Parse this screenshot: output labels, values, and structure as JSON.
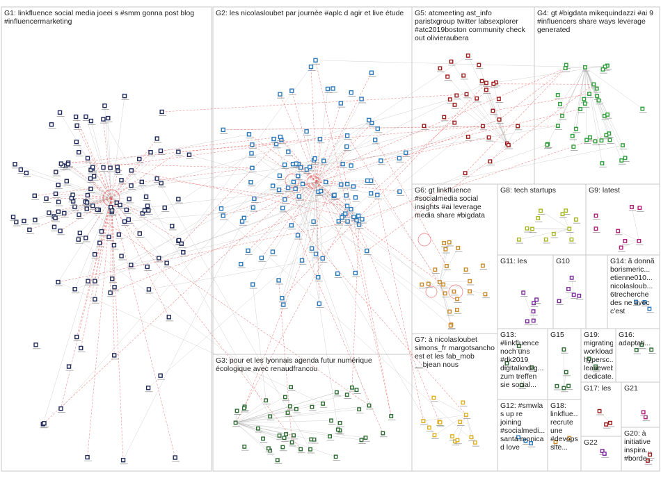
{
  "groups": [
    {
      "id": "G1",
      "label": "G1: linkfluence social media joeei s #smm gonna post blog #influencermarketing",
      "color": "#1f2a5a"
    },
    {
      "id": "G2",
      "label": "G2: les nicolasloubet par journée #aplc d agir et live étude",
      "color": "#2a78b8"
    },
    {
      "id": "G3",
      "label": "G3: pour et les lyonnais agenda futur numérique écologique avec renaudfrancou",
      "color": "#2e6b32"
    },
    {
      "id": "G4",
      "label": "G4: gt #bigdata mikequindazzi #ai 9 #influencers share ways leverage generated",
      "color": "#2e9e3a"
    },
    {
      "id": "G5",
      "label": "G5: atcmeeting ast_info paristxgroup twitter labsexplorer #atc2019boston community check out olivieraubera",
      "color": "#9b1c1c"
    },
    {
      "id": "G6",
      "label": "G6: gt linkfluence #socialmedia social insights #ai leverage media share #bigdata",
      "color": "#c98a2a"
    },
    {
      "id": "G7",
      "label": "G7: à nicolasloubet simons_fr margotsancho est et les fab_mob __bjean nous",
      "color": "#e0b020"
    },
    {
      "id": "G8",
      "label": "G8: tech startups",
      "color": "#a8b820"
    },
    {
      "id": "G9",
      "label": "G9: latest",
      "color": "#b0207a"
    },
    {
      "id": "G10",
      "label": "G10",
      "color": "#7a2a9a"
    },
    {
      "id": "G11",
      "label": "G11: les",
      "color": "#7a2a9a"
    },
    {
      "id": "G12",
      "label": "G12: #smwla s up re joining #socialmedi... santa monica d love",
      "color": "#2a78b8"
    },
    {
      "id": "G13",
      "label": "G13: #linkfluence noch uns #dk2019 digitalkndrg... zum treffen sie social...",
      "color": "#2e6b32"
    },
    {
      "id": "G14",
      "label": "G14: ã donnã borismeric... etienne010... nicolasloub... 6trecherche des ne avec c'est",
      "color": "#2a78b8"
    },
    {
      "id": "G15",
      "label": "G15",
      "color": "#2e6b32"
    },
    {
      "id": "G16",
      "label": "G16: adaptati...",
      "color": "#2e6b32"
    },
    {
      "id": "G17",
      "label": "G17: les",
      "color": "#9b1c1c"
    },
    {
      "id": "G18",
      "label": "G18: linkflue... recrute une #devops site...",
      "color": "#c98a2a"
    },
    {
      "id": "G19",
      "label": "G19: migrating workloads hypersc... leaseweb dedicate...",
      "color": "#2e6b32"
    },
    {
      "id": "G20",
      "label": "G20: à initiative inspira... #borde...",
      "color": "#9b1c1c"
    },
    {
      "id": "G21",
      "label": "G21",
      "color": "#b0207a"
    },
    {
      "id": "G22",
      "label": "G22",
      "color": "#7a2a9a"
    }
  ],
  "colors": {
    "edge": "#b5b5b5",
    "edge_red": "#e84a4a",
    "border": "#c8c8c8"
  }
}
